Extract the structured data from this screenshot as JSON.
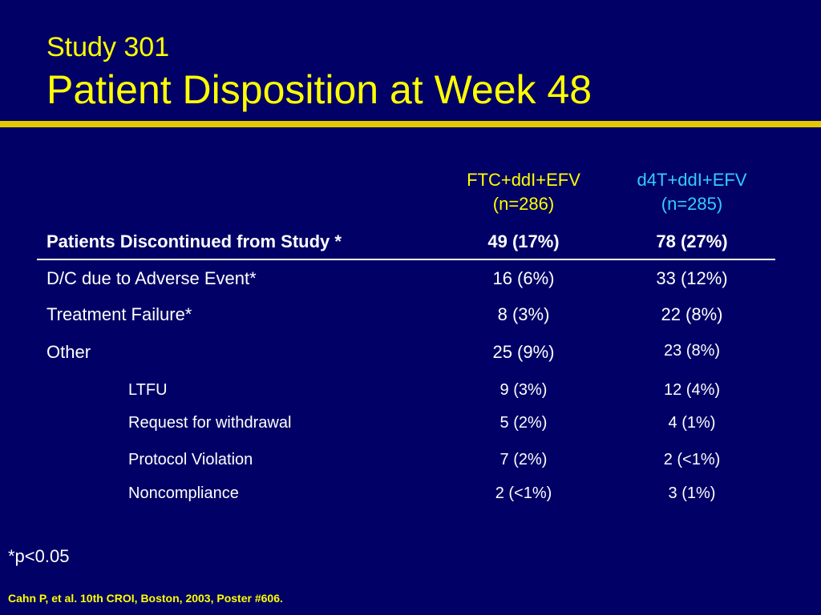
{
  "slide": {
    "subtitle": "Study 301",
    "title": "Patient Disposition at Week 48"
  },
  "table": {
    "columns": [
      {
        "name": "FTC+ddI+EFV",
        "n": "(n=286)",
        "color": "#ffff00"
      },
      {
        "name": "d4T+ddI+EFV",
        "n": "(n=285)",
        "color": "#33ccff"
      }
    ],
    "header_row": {
      "label": "Patients Discontinued from Study *",
      "values": [
        "49 (17%)",
        "78 (27%)"
      ]
    },
    "rows": [
      {
        "label": "D/C due to Adverse Event*",
        "values": [
          "16 (6%)",
          "33 (12%)"
        ]
      },
      {
        "label": "Treatment Failure*",
        "values": [
          "8 (3%)",
          "22 (8%)"
        ]
      },
      {
        "label": "Other",
        "values": [
          "25 (9%)",
          "23 (8%)"
        ]
      },
      {
        "label": "LTFU",
        "values": [
          "9 (3%)",
          "12 (4%)"
        ]
      },
      {
        "label": "Request for withdrawal",
        "values": [
          "5 (2%)",
          "4 (1%)"
        ]
      },
      {
        "label": "Protocol Violation",
        "values": [
          "7 (2%)",
          "2 (<1%)"
        ]
      },
      {
        "label": "Noncompliance",
        "values": [
          "2 (<1%)",
          "3 (1%)"
        ]
      }
    ]
  },
  "footnote": "*p<0.05",
  "citation": "Cahn P, et al. 10th CROI, Boston, 2003, Poster #606."
}
